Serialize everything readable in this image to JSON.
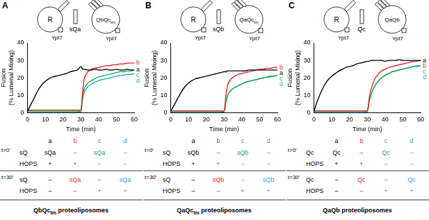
{
  "chart_data": [
    {
      "type": "line",
      "x_label": "Time (min)",
      "y_label": [
        "Fusion",
        "(% Lumenal Mixing)"
      ],
      "x": [
        0,
        2,
        4,
        6,
        8,
        10,
        12,
        14,
        16,
        18,
        20,
        22,
        24,
        26,
        28,
        30,
        31,
        32,
        34,
        36,
        38,
        40,
        42,
        44,
        46,
        48,
        50,
        52,
        54,
        56,
        58,
        60
      ],
      "xlim": [
        0,
        60
      ],
      "xticks": [
        0,
        10,
        20,
        30,
        40,
        50,
        60
      ],
      "ylim": [
        0,
        40
      ],
      "yticks": [
        0,
        10,
        20,
        30,
        40
      ],
      "grid": false,
      "series": [
        {
          "name": "a",
          "color": "#000000",
          "values": [
            1,
            5,
            9,
            13,
            16,
            18,
            19.5,
            20.5,
            21,
            21.5,
            22,
            22.5,
            23.5,
            24,
            24.5,
            26.5,
            25,
            25,
            24.5,
            24.5,
            25,
            24.5,
            24.5,
            25,
            24.5,
            24.5,
            25,
            24.5,
            24.5,
            25,
            24.5,
            24.5
          ]
        },
        {
          "name": "b",
          "color": "#e8251f",
          "values": [
            1.5,
            1.5,
            1.5,
            1.5,
            1.5,
            1.5,
            1.5,
            1.5,
            1.5,
            1.5,
            1.5,
            1.5,
            1.5,
            1.5,
            1.5,
            1.5,
            12,
            20,
            23.5,
            25,
            25.5,
            26,
            26.5,
            27,
            27,
            27.5,
            27.5,
            28,
            28,
            28.5,
            28.5,
            28.5
          ]
        },
        {
          "name": "c",
          "color": "#22a84a",
          "values": [
            1,
            1,
            1,
            1,
            1,
            1,
            1,
            1,
            1,
            1,
            1,
            1,
            1,
            1,
            1,
            1,
            9,
            14,
            17,
            18.5,
            19.5,
            20.5,
            21,
            21.5,
            22,
            22.5,
            23,
            23.5,
            23.5,
            24,
            24,
            24.5
          ]
        },
        {
          "name": "d",
          "color": "#1fa3d4",
          "values": [
            0.5,
            0.5,
            0.5,
            0.5,
            0.5,
            0.5,
            0.5,
            0.5,
            0.5,
            0.5,
            0.5,
            0.5,
            0.5,
            0.5,
            0.5,
            0.5,
            8,
            12,
            15,
            16.5,
            17.5,
            18.5,
            19,
            19.5,
            20,
            20.5,
            21,
            21.5,
            21.5,
            22,
            22,
            22.5
          ]
        }
      ]
    },
    {
      "type": "line",
      "x_label": "Time (min)",
      "y_label": [
        "Fusion",
        "(% Lumenal Mixing)"
      ],
      "x": [
        0,
        2,
        4,
        6,
        8,
        10,
        12,
        14,
        16,
        18,
        20,
        22,
        24,
        26,
        28,
        30,
        31,
        32,
        34,
        36,
        38,
        40,
        42,
        44,
        46,
        48,
        50,
        52,
        54,
        56,
        58,
        60
      ],
      "xlim": [
        0,
        60
      ],
      "xticks": [
        0,
        10,
        20,
        30,
        40,
        50,
        60
      ],
      "ylim": [
        0,
        40
      ],
      "yticks": [
        0,
        10,
        20,
        30,
        40
      ],
      "grid": false,
      "series": [
        {
          "name": "a",
          "color": "#000000",
          "values": [
            1,
            4.5,
            8.5,
            12,
            15,
            17,
            18.5,
            19.5,
            20,
            20.5,
            21,
            21.5,
            22,
            22.5,
            23,
            23.5,
            23.5,
            24,
            24,
            24,
            24,
            24,
            24,
            24.5,
            24.5,
            24.5,
            24.5,
            24.5,
            24.5,
            24.5,
            24.5,
            24.5
          ]
        },
        {
          "name": "b",
          "color": "#e8251f",
          "values": [
            1,
            1,
            1,
            1,
            1,
            1,
            1,
            1,
            1,
            1,
            1,
            1,
            1,
            1,
            1,
            1,
            10,
            16,
            19.5,
            21,
            22,
            22.5,
            23,
            23.5,
            24,
            24.5,
            25,
            25,
            25.5,
            25.5,
            26,
            26
          ]
        },
        {
          "name": "c",
          "color": "#22a84a",
          "values": [
            1,
            1,
            1,
            1,
            1,
            1,
            1,
            1,
            1,
            1,
            1,
            1,
            1,
            1,
            1,
            1,
            6,
            10,
            13,
            14.5,
            15.5,
            16.5,
            17.5,
            18,
            18.5,
            19,
            19.5,
            20,
            20.5,
            21,
            21,
            21.5
          ]
        },
        {
          "name": "d",
          "color": "#1fa3d4",
          "values": [
            0.5,
            0.5,
            0.5,
            0.5,
            0.5,
            0.5,
            0.5,
            0.5,
            0.5,
            0.5,
            0.5,
            0.5,
            0.5,
            0.5,
            0.5,
            0.5,
            6,
            10,
            13,
            14.5,
            15.5,
            16.5,
            17.5,
            18,
            18.5,
            19,
            19.5,
            20,
            20.5,
            20.5,
            21,
            21.5
          ]
        }
      ]
    },
    {
      "type": "line",
      "x_label": "Time (min)",
      "y_label": [
        "Fusion",
        "(% Lumenal Mixing)"
      ],
      "x": [
        0,
        2,
        4,
        6,
        8,
        10,
        12,
        14,
        16,
        18,
        20,
        22,
        24,
        26,
        28,
        30,
        31,
        32,
        34,
        36,
        38,
        40,
        42,
        44,
        46,
        48,
        50,
        52,
        54,
        56,
        58,
        60
      ],
      "xlim": [
        0,
        60
      ],
      "xticks": [
        0,
        10,
        20,
        30,
        40,
        50,
        60
      ],
      "ylim": [
        0,
        40
      ],
      "yticks": [
        0,
        10,
        20,
        30,
        40
      ],
      "grid": false,
      "series": [
        {
          "name": "a",
          "color": "#000000",
          "values": [
            1,
            7,
            12,
            16,
            19,
            21,
            22.5,
            24,
            25,
            26,
            26.5,
            27,
            28,
            28.5,
            29,
            29.5,
            29.5,
            30,
            30,
            30,
            30,
            29.5,
            30,
            30,
            30,
            30.5,
            30,
            30,
            30,
            30,
            30,
            30
          ]
        },
        {
          "name": "b",
          "color": "#e8251f",
          "values": [
            1,
            1,
            1,
            1,
            1,
            1,
            1,
            1,
            1,
            1,
            1,
            1,
            1,
            1,
            1,
            1,
            8,
            13,
            19,
            22,
            24,
            25,
            26,
            26.5,
            27,
            27.5,
            28,
            28.5,
            29,
            29.5,
            29.5,
            30
          ]
        },
        {
          "name": "c",
          "color": "#22a84a",
          "values": [
            1,
            1,
            1,
            1,
            1,
            1,
            1,
            1,
            1,
            1,
            1,
            1,
            1,
            1,
            1,
            1,
            6,
            10,
            15,
            18,
            20,
            21.5,
            22.5,
            23.5,
            24,
            24.5,
            25,
            25.5,
            26,
            26.5,
            27,
            27
          ]
        },
        {
          "name": "d",
          "color": "#1fa3d4",
          "values": [
            0.5,
            0.5,
            0.5,
            0.5,
            0.5,
            0.5,
            0.5,
            0.5,
            0.5,
            0.5,
            0.5,
            0.5,
            0.5,
            0.5,
            0.5,
            0.5,
            6,
            10,
            15,
            18,
            20,
            21.5,
            22.5,
            23.5,
            24,
            24.5,
            25,
            25.5,
            26,
            26.5,
            26.5,
            27
          ]
        }
      ]
    }
  ],
  "panels": [
    {
      "panel_label": "A",
      "schematic": {
        "left_vesicle": "R",
        "left_anchor": "Ypt7",
        "middle": "sQa",
        "right_vesicle": {
          "text": "QbQc",
          "subscript": "tm"
        },
        "right_anchor": "Ypt7"
      },
      "table": {
        "columns": [
          {
            "label": "a",
            "color": "#000000"
          },
          {
            "label": "b",
            "color": "#e8251f"
          },
          {
            "label": "c",
            "color": "#22a84a"
          },
          {
            "label": "d",
            "color": "#1fa3d4"
          }
        ],
        "sections": [
          {
            "time": "t=0'",
            "rows": [
              {
                "label": "sQ",
                "cells": [
                  "sQa",
                  "–",
                  "sQa",
                  "–"
                ]
              },
              {
                "label": "HOPS",
                "cells": [
                  "+",
                  "+",
                  "–",
                  "–"
                ]
              }
            ]
          },
          {
            "time": "t=30'",
            "rows": [
              {
                "label": "sQ",
                "cells": [
                  "–",
                  "sQa",
                  "–",
                  "sQa"
                ]
              },
              {
                "label": "HOPS",
                "cells": [
                  "–",
                  "–",
                  "+",
                  "+"
                ]
              }
            ]
          }
        ],
        "caption": {
          "text": "QbQc",
          "subscript": "tm",
          "after": " proteoliposomes"
        }
      }
    },
    {
      "panel_label": "B",
      "schematic": {
        "left_vesicle": "R",
        "left_anchor": "Ypt7",
        "middle": "sQb",
        "right_vesicle": {
          "text": "QaQc",
          "subscript": "tm"
        },
        "right_anchor": "Ypt7"
      },
      "table": {
        "columns": [
          {
            "label": "a",
            "color": "#000000"
          },
          {
            "label": "b",
            "color": "#e8251f"
          },
          {
            "label": "c",
            "color": "#22a84a"
          },
          {
            "label": "d",
            "color": "#1fa3d4"
          }
        ],
        "sections": [
          {
            "time": "t=0'",
            "rows": [
              {
                "label": "sQ",
                "cells": [
                  "sQb",
                  "–",
                  "sQb",
                  "–"
                ]
              },
              {
                "label": "HOPS",
                "cells": [
                  "+",
                  "+",
                  "–",
                  "–"
                ]
              }
            ]
          },
          {
            "time": "t=30'",
            "rows": [
              {
                "label": "sQ",
                "cells": [
                  "–",
                  "sQb",
                  "–",
                  "sQb"
                ]
              },
              {
                "label": "HOPS",
                "cells": [
                  "–",
                  "–",
                  "+",
                  "+"
                ]
              }
            ]
          }
        ],
        "caption": {
          "text": "QaQc",
          "subscript": "tm",
          "after": " proteoliposomes"
        }
      }
    },
    {
      "panel_label": "C",
      "schematic": {
        "left_vesicle": "R",
        "left_anchor": "Ypt7",
        "middle": "Qc",
        "right_vesicle": {
          "text": "QaQb"
        },
        "right_anchor": "Ypt7"
      },
      "table": {
        "columns": [
          {
            "label": "a",
            "color": "#000000"
          },
          {
            "label": "b",
            "color": "#e8251f"
          },
          {
            "label": "c",
            "color": "#22a84a"
          },
          {
            "label": "d",
            "color": "#1fa3d4"
          }
        ],
        "sections": [
          {
            "time": "t=0'",
            "rows": [
              {
                "label": "Qc",
                "cells": [
                  "Qc",
                  "–",
                  "Qc",
                  "–"
                ]
              },
              {
                "label": "HOPS",
                "cells": [
                  "+",
                  "+",
                  "–",
                  "–"
                ]
              }
            ]
          },
          {
            "time": "t=30'",
            "rows": [
              {
                "label": "Qc",
                "cells": [
                  "–",
                  "Qc",
                  "–",
                  "Qc"
                ]
              },
              {
                "label": "HOPS",
                "cells": [
                  "–",
                  "–",
                  "+",
                  "+"
                ]
              }
            ]
          }
        ],
        "caption": {
          "text": "QaQb proteoliposomes"
        }
      }
    }
  ]
}
